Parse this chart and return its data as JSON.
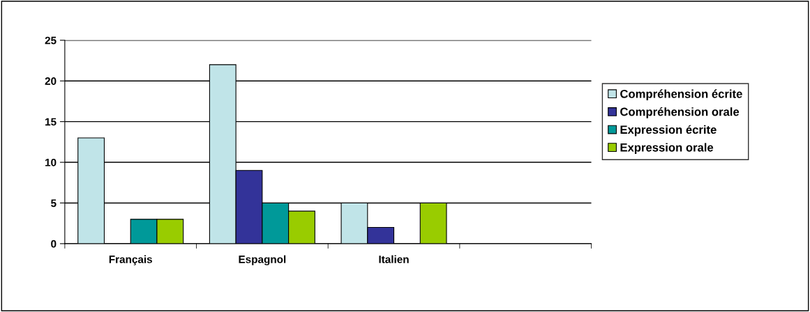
{
  "chart_data": {
    "type": "bar",
    "categories": [
      "Français",
      "Espagnol",
      "Italien",
      null
    ],
    "series": [
      {
        "name": "Compréhension écrite",
        "color": "#c0e4e8",
        "values": [
          13,
          22,
          5,
          null
        ]
      },
      {
        "name": "Compréhension orale",
        "color": "#333399",
        "values": [
          0,
          9,
          2,
          null
        ]
      },
      {
        "name": "Expression écrite",
        "color": "#009999",
        "values": [
          3,
          5,
          0,
          null
        ]
      },
      {
        "name": "Expression orale",
        "color": "#99cc00",
        "values": [
          3,
          4,
          5,
          null
        ]
      }
    ],
    "ylim": [
      0,
      25
    ],
    "yticks": [
      0,
      5,
      10,
      15,
      20,
      25
    ],
    "grid": "y",
    "legend": "right"
  }
}
